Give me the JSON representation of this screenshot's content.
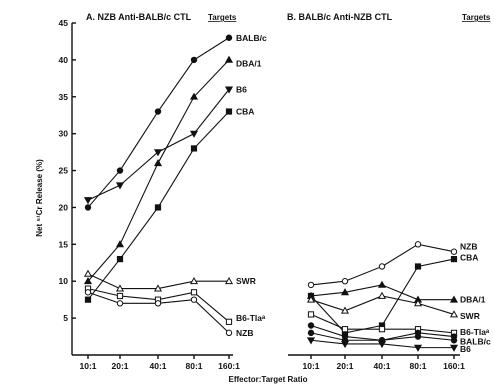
{
  "x_axis_title": "Effector:Target Ratio",
  "y_axis_title": "Net ⁵¹Cr Release (%)",
  "targets_label": "Targets",
  "chart_data": [
    {
      "type": "line",
      "title": "A. NZB Anti-BALB/c CTL",
      "categories": [
        "10:1",
        "20:1",
        "40:1",
        "80:1",
        "160:1"
      ],
      "ylim": [
        0,
        45
      ],
      "yticks": [
        5,
        10,
        15,
        20,
        25,
        30,
        35,
        40,
        45
      ],
      "grid": false,
      "legend": "direct labels at line ends",
      "series": [
        {
          "name": "BALB/c",
          "marker": "filled-circle",
          "values": [
            20,
            25,
            33,
            40,
            43
          ]
        },
        {
          "name": "DBA/1",
          "marker": "filled-triangle",
          "values": [
            10,
            15,
            26,
            35,
            40
          ]
        },
        {
          "name": "B6",
          "marker": "filled-down-triangle",
          "values": [
            21,
            23,
            27.5,
            30,
            36
          ]
        },
        {
          "name": "CBA",
          "marker": "filled-square",
          "values": [
            7.5,
            13,
            20,
            28,
            33
          ]
        },
        {
          "name": "SWR",
          "marker": "open-triangle",
          "values": [
            11,
            9,
            9,
            10,
            10
          ]
        },
        {
          "name": "B6-Tlaᵃ",
          "marker": "open-square",
          "values": [
            9,
            8,
            7.5,
            8.5,
            4.5
          ]
        },
        {
          "name": "NZB",
          "marker": "open-circle",
          "values": [
            8.5,
            7,
            7,
            7.5,
            3
          ]
        }
      ]
    },
    {
      "type": "line",
      "title": "B. BALB/c Anti-NZB CTL",
      "categories": [
        "10:1",
        "20:1",
        "40:1",
        "80:1",
        "160:1"
      ],
      "ylim": [
        0,
        45
      ],
      "grid": false,
      "legend": "direct labels at line ends",
      "series": [
        {
          "name": "NZB",
          "marker": "open-circle",
          "values": [
            9.5,
            10,
            12,
            15,
            14
          ]
        },
        {
          "name": "CBA",
          "marker": "filled-square",
          "values": [
            8,
            3,
            4,
            12,
            13
          ]
        },
        {
          "name": "DBA/1",
          "marker": "filled-triangle",
          "values": [
            8,
            8.5,
            9.5,
            7.5,
            7.5
          ]
        },
        {
          "name": "SWR",
          "marker": "open-triangle",
          "values": [
            7.5,
            6,
            8,
            7,
            5.5
          ]
        },
        {
          "name": "B6-Tlaᵃ",
          "marker": "open-square",
          "values": [
            5.5,
            3.5,
            3.5,
            3.5,
            3
          ]
        },
        {
          "name": "BALB/c",
          "marker": "filled-circle",
          "values": [
            4,
            2.5,
            2,
            2.5,
            2
          ]
        },
        {
          "name": "B6",
          "marker": "filled-down-triangle",
          "values": [
            2,
            1.5,
            1.5,
            1,
            1
          ]
        },
        {
          "name": "",
          "marker": "filled-circle",
          "values": [
            3,
            2,
            2,
            3,
            2.5
          ]
        }
      ]
    }
  ]
}
